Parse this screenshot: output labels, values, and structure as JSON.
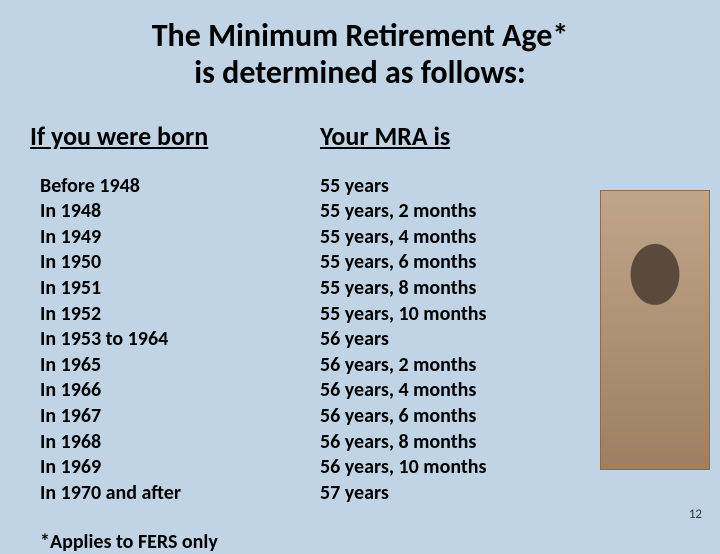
{
  "title_line1": "The Minimum Retirement Age*",
  "title_line2": "is determined as follows:",
  "header_left": "If you were born",
  "header_right": "Your MRA is",
  "rows": [
    {
      "born": "Before 1948",
      "mra": "55 years"
    },
    {
      "born": "In 1948",
      "mra": "55 years, 2 months"
    },
    {
      "born": "In 1949",
      "mra": "55 years, 4 months"
    },
    {
      "born": "In 1950",
      "mra": "55 years, 6 months"
    },
    {
      "born": "In 1951",
      "mra": "55 years, 8 months"
    },
    {
      "born": "In 1952",
      "mra": "55 years, 10 months"
    },
    {
      "born": "In 1953 to 1964",
      "mra": "56 years"
    },
    {
      "born": "In 1965",
      "mra": "56 years, 2 months"
    },
    {
      "born": "In 1966",
      "mra": "56 years, 4 months"
    },
    {
      "born": "In 1967",
      "mra": "56 years, 6 months"
    },
    {
      "born": "In 1968",
      "mra": "56 years, 8 months"
    },
    {
      "born": "In 1969",
      "mra": "56 years, 10 months"
    },
    {
      "born": "In 1970 and after",
      "mra": "57 years"
    }
  ],
  "footnote": "*Applies to FERS only",
  "page_number": "12",
  "colors": {
    "background": "#c1d4e5",
    "text": "#000000"
  },
  "typography": {
    "title_fontsize": 32,
    "header_fontsize": 26,
    "row_fontsize": 20,
    "footnote_fontsize": 20,
    "pagenum_fontsize": 13,
    "font_family": "Calibri"
  }
}
